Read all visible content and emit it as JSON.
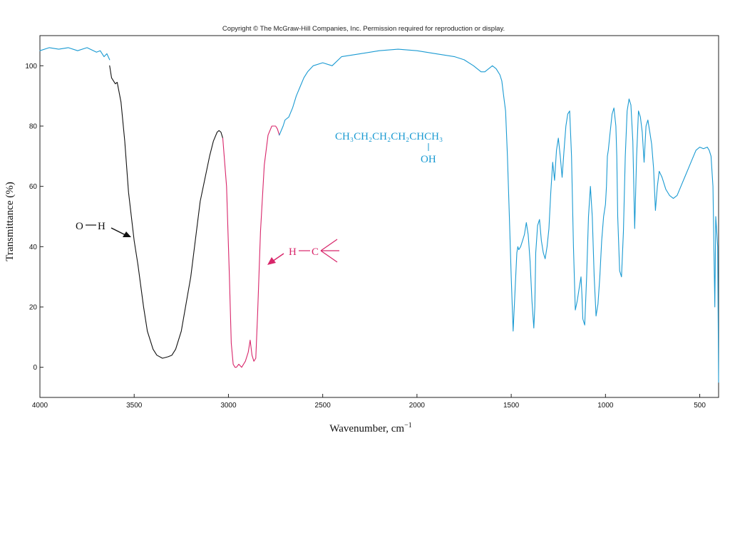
{
  "copyright": "Copyright © The McGraw-Hill Companies, Inc. Permission required for reproduction or display.",
  "colors": {
    "blue": "#1a9ad2",
    "black": "#111111",
    "magenta": "#d8266a"
  },
  "chart_data": {
    "type": "line",
    "title": "",
    "xlabel": "Wavenumber, cm",
    "xlabel_sup": "−1",
    "ylabel": "Transmittance (%)",
    "xlim": [
      4000,
      400
    ],
    "ylim": [
      -10,
      110
    ],
    "x_ticks": [
      4000,
      3500,
      3000,
      2500,
      2000,
      1500,
      1000,
      500
    ],
    "y_ticks": [
      0,
      20,
      40,
      60,
      80,
      100
    ],
    "grid": false,
    "series": [
      {
        "color": "#1a9ad2",
        "x": [
          4000,
          3950,
          3900,
          3850,
          3800,
          3750,
          3700,
          3680,
          3660,
          3645,
          3630
        ],
        "y": [
          105,
          106,
          105.5,
          106,
          105,
          106,
          104.5,
          105,
          103,
          104,
          102
        ]
      },
      {
        "color": "#111111",
        "x": [
          3630,
          3620,
          3600,
          3590,
          3570,
          3550,
          3530,
          3500,
          3480,
          3450,
          3430,
          3400,
          3380,
          3350,
          3320,
          3300,
          3280,
          3250,
          3200,
          3150,
          3100,
          3080,
          3060,
          3050,
          3040,
          3030
        ],
        "y": [
          100,
          96,
          94,
          94.5,
          88,
          75,
          58,
          42,
          34,
          20,
          12,
          6,
          4,
          3,
          3.5,
          4,
          6,
          12,
          30,
          55,
          70,
          75,
          78,
          78.5,
          78,
          76
        ]
      },
      {
        "color": "#d8266a",
        "x": [
          3030,
          3010,
          2995,
          2985,
          2975,
          2965,
          2958,
          2945,
          2930,
          2910,
          2895,
          2885,
          2875,
          2865,
          2855,
          2845,
          2830,
          2810,
          2790,
          2770,
          2750,
          2740,
          2730
        ],
        "y": [
          76,
          60,
          30,
          8,
          1,
          0,
          0,
          1,
          0,
          2,
          5,
          9,
          4,
          2,
          3,
          18,
          45,
          67,
          77,
          80,
          80,
          79,
          77
        ]
      },
      {
        "color": "#1a9ad2",
        "x": [
          2730,
          2710,
          2700,
          2680,
          2660,
          2640,
          2620,
          2600,
          2580,
          2550,
          2500,
          2450,
          2400,
          2300,
          2200,
          2100,
          2000,
          1900,
          1800,
          1750,
          1700,
          1680,
          1660,
          1640,
          1620,
          1600,
          1580,
          1560,
          1550,
          1540,
          1530,
          1520,
          1510,
          1500,
          1490,
          1480,
          1470,
          1465,
          1460,
          1450,
          1440,
          1430,
          1420,
          1410,
          1400,
          1390,
          1380,
          1375,
          1370,
          1360,
          1350,
          1340,
          1330,
          1320,
          1310,
          1300,
          1290,
          1280,
          1270,
          1260,
          1250,
          1240,
          1230,
          1220,
          1210,
          1200,
          1190,
          1180,
          1170,
          1160,
          1150,
          1140,
          1130,
          1125,
          1120,
          1110,
          1100,
          1090,
          1080,
          1070,
          1060,
          1050,
          1040,
          1030,
          1020,
          1010,
          1000,
          995,
          990,
          985,
          975,
          965,
          955,
          945,
          940,
          935,
          925,
          915,
          905,
          895,
          885,
          875,
          865,
          855,
          845,
          835,
          825,
          815,
          805,
          795,
          785,
          775,
          765,
          755,
          745,
          735,
          725,
          715,
          700,
          680,
          660,
          640,
          620,
          600,
          580,
          560,
          540,
          520,
          500,
          480,
          460,
          450,
          440,
          430,
          425,
          420,
          415,
          410,
          405,
          400
        ],
        "y": [
          77,
          80,
          82,
          83,
          86,
          90,
          93,
          96,
          98,
          100,
          101,
          100,
          103,
          104,
          105,
          105.5,
          105,
          104,
          103,
          102,
          100,
          99,
          98,
          98,
          99,
          100,
          99,
          97,
          95,
          90,
          85,
          70,
          50,
          30,
          12,
          25,
          38,
          40,
          39,
          40,
          42,
          44,
          48,
          44,
          35,
          22,
          13,
          20,
          38,
          47,
          49,
          42,
          38,
          36,
          40,
          46,
          58,
          68,
          62,
          72,
          76,
          70,
          63,
          72,
          80,
          84,
          85,
          70,
          40,
          19,
          22,
          26,
          30,
          24,
          16,
          14,
          30,
          50,
          60,
          50,
          30,
          17,
          21,
          30,
          42,
          50,
          54,
          60,
          70,
          72,
          78,
          84,
          86,
          80,
          70,
          50,
          32,
          30,
          45,
          70,
          85,
          89,
          87,
          75,
          46,
          70,
          85,
          83,
          78,
          68,
          80,
          82,
          78,
          74,
          66,
          52,
          60,
          65,
          63,
          59,
          57,
          56,
          57,
          60,
          63,
          66,
          69,
          72,
          73,
          72.5,
          73,
          72,
          70,
          60,
          40,
          20,
          50,
          45,
          40,
          -5
        ]
      }
    ],
    "formula_main": "CH₃CH₂CH₂CH₂CHCH₃",
    "formula_sub": "OH",
    "annotations": [
      {
        "label_left": "O",
        "label_right": "H",
        "color": "#111111",
        "tip_x": 3510,
        "tip_y": 43
      },
      {
        "label_left": "H",
        "label_right": "C",
        "color": "#d8266a",
        "tip_x": 2830,
        "tip_y": 34
      }
    ]
  }
}
